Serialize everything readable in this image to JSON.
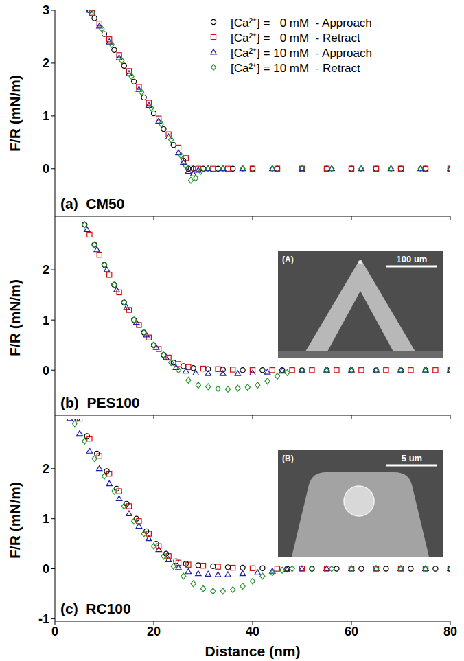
{
  "chart_data": [
    {
      "type": "scatter",
      "panel_label": "(a)",
      "title": "CM50",
      "y_label": "F/R (mN/m)",
      "xlim": [
        0,
        80
      ],
      "xticks": [
        0,
        20,
        40,
        60,
        80
      ],
      "ylim": [
        -0.9,
        3
      ],
      "yticks": [
        0,
        1,
        2,
        3
      ],
      "tick_labels": "y",
      "legend": "upper right",
      "series": [
        {
          "name": "[Ca²⁺] =   0 mM  - Approach",
          "color": "#000000",
          "marker": "circle",
          "x": [
            7,
            8,
            10,
            12,
            14,
            16,
            18,
            20,
            22,
            24,
            26,
            27,
            28,
            30,
            33,
            36,
            40,
            45,
            50,
            55,
            60,
            65,
            70,
            75,
            80
          ],
          "values": [
            3,
            2.85,
            2.55,
            2.25,
            1.95,
            1.65,
            1.35,
            1.05,
            0.75,
            0.45,
            0.15,
            0,
            0,
            0,
            0,
            0,
            0,
            0,
            0,
            0,
            0,
            0,
            0,
            0,
            0
          ]
        },
        {
          "name": "[Ca²⁺] =   0 mM  - Retract",
          "color": "#d01010",
          "marker": "square",
          "x": [
            7.5,
            9,
            11,
            13,
            15,
            17,
            19,
            21,
            23,
            25,
            26.5,
            27.5,
            29,
            32,
            35,
            40,
            45,
            50,
            55,
            60,
            65,
            70,
            75,
            80
          ],
          "values": [
            2.95,
            2.75,
            2.45,
            2.15,
            1.85,
            1.55,
            1.25,
            0.95,
            0.65,
            0.4,
            0.2,
            0.02,
            0,
            0,
            0,
            0,
            0,
            0,
            0,
            0,
            0,
            0,
            0,
            0
          ]
        },
        {
          "name": "[Ca²⁺] = 10 mM  - Approach",
          "color": "#1c1ca8",
          "marker": "triangle",
          "x": [
            7,
            9,
            11,
            13,
            15,
            17,
            19,
            21,
            23,
            25,
            26,
            27,
            28,
            29,
            31,
            34,
            38,
            44,
            50,
            56,
            62,
            68,
            74,
            80
          ],
          "values": [
            3,
            2.7,
            2.4,
            2.1,
            1.8,
            1.5,
            1.2,
            0.9,
            0.6,
            0.3,
            0.12,
            -0.05,
            -0.1,
            -0.03,
            0,
            0,
            0,
            0,
            0,
            0,
            0,
            0,
            0,
            0
          ]
        },
        {
          "name": "[Ca²⁺] = 10 mM  - Retract",
          "color": "#22962a",
          "marker": "diamond",
          "x": [
            7.5,
            9.5,
            11.5,
            13.5,
            15.5,
            17.5,
            19.5,
            21.5,
            23.5,
            25.5,
            26.5,
            27.5,
            28.5,
            29.5,
            31,
            34,
            38,
            44,
            50,
            56,
            62,
            68,
            74,
            80
          ],
          "values": [
            2.95,
            2.65,
            2.35,
            2.05,
            1.75,
            1.45,
            1.15,
            0.85,
            0.55,
            0.25,
            0.05,
            -0.22,
            -0.18,
            -0.05,
            0,
            0,
            0,
            0,
            0,
            0,
            0,
            0,
            0,
            0
          ]
        }
      ]
    },
    {
      "type": "scatter",
      "panel_label": "(b)",
      "title": "PES100",
      "y_label": "F/R (mN/m)",
      "xlim": [
        0,
        80
      ],
      "xticks": [
        0,
        20,
        40,
        60,
        80
      ],
      "ylim": [
        -0.9,
        3
      ],
      "yticks": [
        0,
        1,
        2
      ],
      "tick_labels": "y",
      "inset": {
        "label": "(A)",
        "scale_bar": "100 um"
      },
      "series": [
        {
          "color": "#000000",
          "marker": "circle",
          "x": [
            6,
            8,
            10,
            12,
            14,
            16,
            18,
            20,
            22,
            24,
            26,
            28,
            31,
            34,
            38,
            42,
            46,
            50,
            55,
            60,
            65,
            70,
            75,
            80
          ],
          "values": [
            2.9,
            2.5,
            2.1,
            1.7,
            1.35,
            1.0,
            0.75,
            0.5,
            0.3,
            0.15,
            0.08,
            0.04,
            0.02,
            0.01,
            0,
            0,
            0,
            0,
            0,
            0,
            0,
            0,
            0,
            0
          ]
        },
        {
          "color": "#d01010",
          "marker": "square",
          "x": [
            7,
            9,
            11,
            13,
            15,
            17,
            19,
            21,
            23,
            25,
            27,
            30,
            33,
            36,
            40,
            44,
            48,
            52,
            57,
            62,
            67,
            72,
            77,
            80
          ],
          "values": [
            2.7,
            2.3,
            1.9,
            1.55,
            1.2,
            0.9,
            0.65,
            0.42,
            0.25,
            0.12,
            0.06,
            0.03,
            0.02,
            0.01,
            0,
            0,
            0,
            0,
            0,
            0,
            0,
            0,
            0,
            0
          ]
        },
        {
          "color": "#1c1ca8",
          "marker": "triangle",
          "x": [
            6.5,
            8.5,
            10.5,
            12.5,
            14.5,
            16.5,
            18.5,
            20.5,
            22.5,
            24.5,
            26.5,
            28.5,
            31,
            34,
            37,
            40,
            43,
            46,
            50,
            55,
            60,
            65,
            70,
            75,
            80
          ],
          "values": [
            2.8,
            2.4,
            2.0,
            1.6,
            1.25,
            0.95,
            0.7,
            0.45,
            0.25,
            0.05,
            -0.02,
            -0.06,
            -0.07,
            -0.07,
            -0.07,
            -0.06,
            -0.04,
            -0.02,
            0,
            0,
            0,
            0,
            0,
            0,
            0
          ]
        },
        {
          "color": "#22962a",
          "marker": "diamond",
          "x": [
            6,
            8,
            10,
            12,
            14,
            16,
            18,
            20,
            22,
            23.5,
            25,
            27,
            29,
            31,
            33,
            35,
            37,
            39,
            41,
            43,
            45,
            47,
            50,
            55,
            60,
            65,
            70,
            75,
            80
          ],
          "values": [
            2.9,
            2.5,
            2.1,
            1.7,
            1.35,
            1.0,
            0.75,
            0.5,
            0.3,
            0.15,
            0.0,
            -0.2,
            -0.3,
            -0.33,
            -0.37,
            -0.38,
            -0.36,
            -0.34,
            -0.3,
            -0.22,
            -0.12,
            -0.05,
            0,
            0,
            0,
            0,
            0,
            0,
            0
          ]
        }
      ]
    },
    {
      "type": "scatter",
      "panel_label": "(c)",
      "title": "RC100",
      "x_label": "Distance (nm)",
      "y_label": "F/R (mN/m)",
      "xlim": [
        0,
        80
      ],
      "xticks": [
        0,
        20,
        40,
        60,
        80
      ],
      "ylim": [
        -1.05,
        3
      ],
      "yticks": [
        -1,
        0,
        1,
        2
      ],
      "inset": {
        "label": "(B)",
        "scale_bar": "5 um"
      },
      "series": [
        {
          "color": "#1c1ca8",
          "marker": "triangle",
          "x": [
            3,
            5,
            7,
            9,
            11,
            13,
            15,
            17,
            19,
            21,
            23,
            25,
            27,
            29,
            31,
            33,
            35,
            38,
            41,
            44,
            47,
            50,
            55,
            60,
            65,
            70,
            75,
            80
          ],
          "values": [
            3,
            2.7,
            2.35,
            2.0,
            1.7,
            1.4,
            1.1,
            0.85,
            0.6,
            0.38,
            0.18,
            0.02,
            -0.06,
            -0.1,
            -0.11,
            -0.12,
            -0.12,
            -0.1,
            -0.08,
            -0.05,
            -0.02,
            0,
            0,
            0,
            0,
            0,
            0,
            0
          ]
        },
        {
          "color": "#d01010",
          "marker": "square",
          "x": [
            5,
            7,
            9,
            11,
            13,
            15,
            17,
            19,
            21,
            23,
            25,
            27,
            30,
            33,
            36,
            40,
            45,
            50,
            55,
            60,
            65,
            70,
            75,
            80
          ],
          "values": [
            3,
            2.6,
            2.25,
            1.9,
            1.55,
            1.25,
            0.95,
            0.7,
            0.45,
            0.25,
            0.12,
            0.08,
            0.06,
            0.04,
            0.02,
            0.01,
            0,
            0,
            0,
            0,
            0,
            0,
            0,
            0
          ]
        },
        {
          "color": "#000000",
          "marker": "circle",
          "x": [
            4.5,
            6.5,
            8.5,
            10.5,
            12.5,
            14.5,
            16.5,
            18.5,
            20.5,
            22.5,
            24.5,
            26.5,
            29,
            32,
            35,
            38,
            42,
            47,
            52,
            57,
            62,
            67,
            72,
            77,
            80
          ],
          "values": [
            3,
            2.65,
            2.3,
            1.95,
            1.6,
            1.3,
            1.0,
            0.75,
            0.5,
            0.3,
            0.15,
            0.1,
            0.07,
            0.05,
            0.03,
            0.02,
            0.01,
            0,
            0,
            0,
            0,
            0,
            0,
            0,
            0
          ]
        },
        {
          "color": "#22962a",
          "marker": "diamond",
          "x": [
            4,
            6,
            8,
            10,
            12,
            14,
            16,
            18,
            20,
            22,
            24,
            26,
            28,
            30,
            32,
            34,
            36,
            38,
            40,
            42,
            44,
            46,
            48,
            52,
            56,
            60,
            65,
            70,
            75,
            80
          ],
          "values": [
            2.9,
            2.55,
            2.2,
            1.85,
            1.55,
            1.25,
            0.95,
            0.7,
            0.45,
            0.25,
            0.05,
            -0.15,
            -0.3,
            -0.4,
            -0.45,
            -0.45,
            -0.42,
            -0.35,
            -0.25,
            -0.15,
            -0.08,
            -0.03,
            0,
            0,
            0,
            0,
            0,
            0,
            0,
            0
          ]
        }
      ]
    }
  ]
}
